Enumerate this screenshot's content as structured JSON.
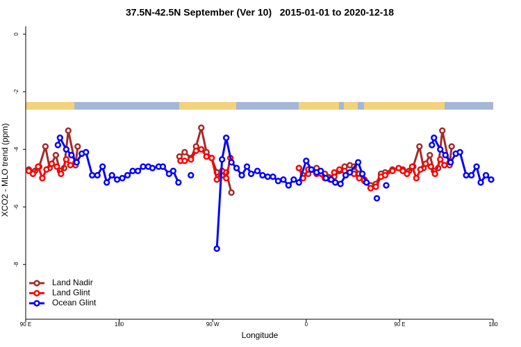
{
  "chart_data": {
    "type": "line",
    "title": "37.5N-42.5N September (Ver 10)   2015-01-01 to 2020-12-18",
    "x_label": "Longitude",
    "y_label": "XCO2 - MLO trend (ppm)",
    "xlim": [
      90,
      540
    ],
    "xticks": [
      {
        "value": 90,
        "label": "90 E"
      },
      180,
      {
        "value": 270,
        "label": "90 W"
      },
      {
        "value": 360,
        "label": "0"
      },
      {
        "value": 450,
        "label": "90 E"
      },
      {
        "value": 540,
        "label": "180"
      }
    ],
    "ylim": [
      -9.9,
      0.27
    ],
    "yticks": [
      0,
      -2,
      -4,
      -6,
      -8
    ],
    "legend": "bottom-left",
    "series": [
      {
        "name": "Land Nadir",
        "color": "#a52a2a",
        "x": [
          93,
          99,
          103,
          109,
          113,
          119,
          123,
          127,
          131,
          138,
          140,
          null,
          238,
          243,
          249,
          254,
          259,
          264,
          269,
          274,
          279,
          283,
          288,
          null,
          353,
          357,
          362,
          370,
          378,
          387,
          392,
          397,
          402,
          406,
          411,
          416,
          422,
          427,
          432,
          436,
          443,
          453,
          459,
          463,
          469,
          473,
          479,
          483,
          487,
          491,
          498,
          500
        ],
        "values": [
          -4.7,
          -4.75,
          -4.6,
          -3.9,
          -4.65,
          -4.2,
          -4.75,
          -4.65,
          -3.35,
          -4.55,
          -3.9,
          null,
          -4.25,
          -4.1,
          -4.3,
          -3.9,
          -3.25,
          -4.1,
          -4.3,
          -4.8,
          -4.9,
          -4.8,
          -5.5,
          null,
          -4.65,
          -4.9,
          -4.85,
          -4.65,
          -4.85,
          -4.95,
          -4.75,
          -4.6,
          -4.55,
          -4.6,
          -4.85,
          -5.1,
          -5.25,
          -5.2,
          -4.85,
          -4.8,
          -4.7,
          -4.7,
          -4.75,
          -4.6,
          -3.9,
          -4.65,
          -4.2,
          -4.75,
          -4.65,
          -3.35,
          -4.55,
          -3.9
        ]
      },
      {
        "name": "Land Glint",
        "color": "#ff0000",
        "x": [
          93,
          97,
          102,
          106,
          110,
          115,
          120,
          124,
          129,
          133,
          138,
          null,
          239,
          243,
          249,
          254,
          259,
          264,
          269,
          274,
          279,
          283,
          287,
          null,
          353,
          357,
          362,
          370,
          378,
          383,
          387,
          392,
          397,
          406,
          411,
          416,
          422,
          427,
          432,
          436,
          443,
          449,
          453,
          457,
          462,
          466,
          470,
          475,
          480,
          484,
          489,
          493,
          498
        ],
        "values": [
          -4.75,
          -4.85,
          -4.6,
          -5.0,
          -4.7,
          -4.5,
          -4.6,
          -4.85,
          -4.35,
          -4.55,
          -4.45,
          null,
          -4.4,
          -4.4,
          -4.35,
          -4.05,
          -4.0,
          -4.25,
          -4.3,
          -5.05,
          -4.75,
          -5.0,
          -4.3,
          null,
          -4.65,
          -5.0,
          -4.7,
          -4.85,
          -5.0,
          -5.05,
          -4.8,
          -4.7,
          -4.75,
          -4.85,
          -5.0,
          -5.05,
          -5.35,
          -5.3,
          -4.95,
          -4.9,
          -4.75,
          -4.65,
          -4.75,
          -4.85,
          -4.6,
          -5.0,
          -4.7,
          -4.5,
          -4.6,
          -4.85,
          -4.35,
          -4.55,
          -4.45
        ]
      },
      {
        "name": "Ocean Glint",
        "color": "#0000ff",
        "x": [
          121,
          123,
          129,
          134,
          139,
          144,
          148,
          154,
          159,
          164,
          168,
          173,
          178,
          183,
          188,
          193,
          198,
          203,
          208,
          212,
          218,
          222,
          228,
          232,
          237,
          null,
          249,
          null,
          274,
          279,
          283,
          288,
          293,
          298,
          303,
          307,
          313,
          318,
          323,
          328,
          333,
          338,
          343,
          348,
          353,
          360,
          365,
          370,
          374,
          379,
          384,
          388,
          393,
          398,
          402,
          410,
          414,
          418,
          null,
          428,
          null,
          437,
          null,
          481,
          483,
          489,
          494,
          499,
          504,
          508,
          514,
          519,
          524,
          528,
          533,
          538
        ],
        "values": [
          -3.85,
          -3.6,
          -4.0,
          -4.2,
          -4.45,
          -4.15,
          -4.1,
          -4.9,
          -4.9,
          -4.6,
          -5.15,
          -4.9,
          -5.05,
          -5.0,
          -4.9,
          -4.75,
          -4.75,
          -4.6,
          -4.6,
          -4.65,
          -4.6,
          -4.6,
          -4.85,
          -4.75,
          -5.15,
          null,
          -4.9,
          null,
          -7.45,
          -4.35,
          -3.6,
          -4.45,
          -4.65,
          -4.9,
          -4.6,
          -4.85,
          -4.75,
          -4.9,
          -4.95,
          -4.95,
          -5.1,
          -5.05,
          -5.25,
          -5.05,
          -5.15,
          -4.4,
          -4.7,
          -4.8,
          -4.75,
          -5.0,
          -5.05,
          -5.15,
          -5.2,
          -4.9,
          -4.8,
          -4.45,
          -4.85,
          -5.15,
          null,
          -5.7,
          null,
          -5.25,
          null,
          -3.85,
          -3.6,
          -4.0,
          -4.2,
          -4.45,
          -4.15,
          -4.1,
          -4.9,
          -4.9,
          -4.6,
          -5.15,
          -4.9,
          -5.05
        ]
      }
    ]
  }
}
